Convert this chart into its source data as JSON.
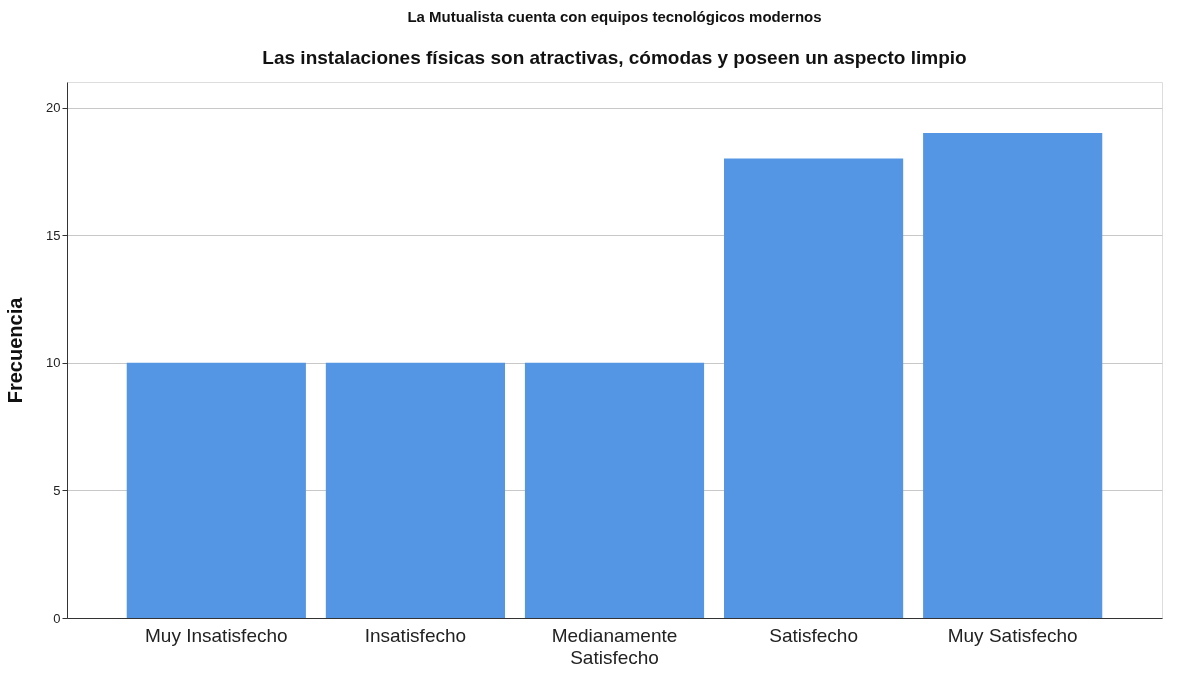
{
  "chart_data": {
    "type": "bar",
    "title": "La Mutualista cuenta con equipos tecnológicos modernos",
    "subtitle": "Las instalaciones físicas son atractivas, cómodas y poseen un aspecto limpio",
    "ylabel": "Frecuencia",
    "categories": [
      "Muy Insatisfecho",
      "Insatisfecho",
      "Medianamente Satisfecho",
      "Satisfecho",
      "Muy Satisfecho"
    ],
    "values": [
      10,
      10,
      10,
      18,
      19
    ],
    "color": "#5596e4",
    "ylim": [
      0,
      21
    ],
    "yticks": [
      0,
      5,
      10,
      15,
      20
    ],
    "grid": "y"
  }
}
